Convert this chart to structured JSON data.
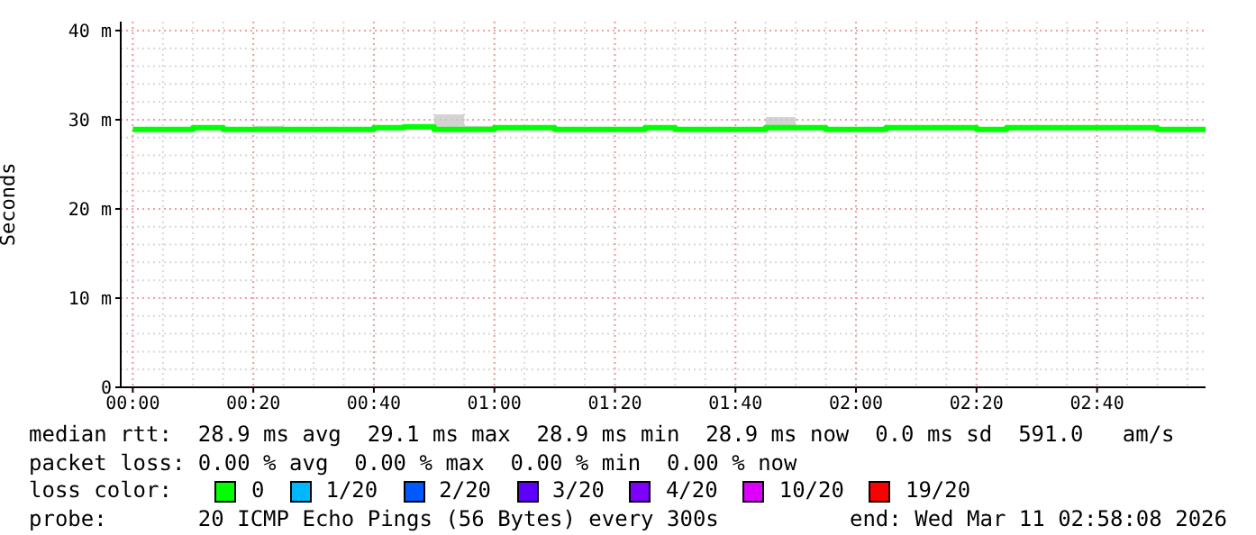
{
  "chart_data": {
    "type": "step",
    "ylabel": "Seconds",
    "legend_title": "loss color:",
    "legend": "bottom",
    "grid": true,
    "xlim": [
      "2026-03-10T23:58",
      "2026-03-11T02:58"
    ],
    "xticks": [
      {
        "value": "2026-03-11T00:00",
        "label": "00:00"
      },
      {
        "value": "2026-03-11T00:20",
        "label": "00:20"
      },
      {
        "value": "2026-03-11T00:40",
        "label": "00:40"
      },
      {
        "value": "2026-03-11T01:00",
        "label": "01:00"
      },
      {
        "value": "2026-03-11T01:20",
        "label": "01:20"
      },
      {
        "value": "2026-03-11T01:40",
        "label": "01:40"
      },
      {
        "value": "2026-03-11T02:00",
        "label": "02:00"
      },
      {
        "value": "2026-03-11T02:20",
        "label": "02:20"
      },
      {
        "value": "2026-03-11T02:40",
        "label": "02:40"
      }
    ],
    "ylim": [
      0,
      41
    ],
    "yticks": [
      0,
      {
        "value": 10,
        "label": "10 m"
      },
      {
        "value": 20,
        "label": "20 m"
      },
      {
        "value": 30,
        "label": "30 m"
      },
      {
        "value": 40,
        "label": "40 m"
      }
    ],
    "x": [
      "2026-03-11T00:00",
      "2026-03-11T00:05",
      "2026-03-11T00:10",
      "2026-03-11T00:15",
      "2026-03-11T00:20",
      "2026-03-11T00:25",
      "2026-03-11T00:30",
      "2026-03-11T00:35",
      "2026-03-11T00:40",
      "2026-03-11T00:45",
      "2026-03-11T00:50",
      "2026-03-11T00:55",
      "2026-03-11T01:00",
      "2026-03-11T01:05",
      "2026-03-11T01:10",
      "2026-03-11T01:15",
      "2026-03-11T01:20",
      "2026-03-11T01:25",
      "2026-03-11T01:30",
      "2026-03-11T01:35",
      "2026-03-11T01:40",
      "2026-03-11T01:45",
      "2026-03-11T01:50",
      "2026-03-11T01:55",
      "2026-03-11T02:00",
      "2026-03-11T02:05",
      "2026-03-11T02:10",
      "2026-03-11T02:15",
      "2026-03-11T02:20",
      "2026-03-11T02:25",
      "2026-03-11T02:30",
      "2026-03-11T02:35",
      "2026-03-11T02:40",
      "2026-03-11T02:45",
      "2026-03-11T02:50",
      "2026-03-11T02:55"
    ],
    "series": [
      {
        "name": "0",
        "color": "#00ff00",
        "values": [
          28.9,
          28.9,
          29.1,
          28.9,
          28.9,
          28.9,
          28.9,
          28.9,
          29.1,
          29.2,
          28.9,
          28.9,
          29.1,
          29.1,
          28.9,
          28.9,
          28.9,
          29.1,
          28.9,
          28.9,
          28.9,
          29.1,
          29.1,
          28.9,
          28.9,
          29.1,
          29.1,
          29.1,
          28.9,
          29.1,
          29.1,
          29.1,
          29.1,
          29.1,
          28.9,
          28.9
        ],
        "lower": [
          28.9,
          28.9,
          29.1,
          28.9,
          28.9,
          28.9,
          28.9,
          28.9,
          29.1,
          29.2,
          28.9,
          28.9,
          29.1,
          29.1,
          28.9,
          28.9,
          28.9,
          29.1,
          28.9,
          28.9,
          28.9,
          29.1,
          29.1,
          28.9,
          28.9,
          29.1,
          29.1,
          29.1,
          28.9,
          29.1,
          29.1,
          29.1,
          29.1,
          29.1,
          28.9,
          28.9
        ],
        "upper": [
          28.9,
          28.9,
          29.1,
          28.9,
          29.3,
          28.9,
          28.9,
          28.9,
          29.1,
          29.2,
          30.6,
          29.3,
          29.1,
          29.1,
          28.9,
          28.9,
          28.9,
          29.1,
          28.9,
          28.9,
          28.9,
          30.3,
          29.1,
          28.9,
          28.9,
          29.1,
          29.1,
          29.1,
          28.9,
          29.1,
          29.1,
          29.1,
          29.1,
          29.1,
          28.9,
          28.9
        ]
      },
      {
        "name": "1/20",
        "color": "#00b8ff",
        "values": [
          null,
          null,
          null,
          null,
          null,
          null,
          null,
          null,
          null,
          null,
          null,
          null,
          null,
          null,
          null,
          null,
          null,
          null,
          null,
          null,
          null,
          null,
          null,
          null,
          null,
          null,
          null,
          null,
          null,
          null,
          null,
          null,
          null,
          null,
          null,
          null
        ]
      },
      {
        "name": "2/20",
        "color": "#0059ff",
        "values": [
          null,
          null,
          null,
          null,
          null,
          null,
          null,
          null,
          null,
          null,
          null,
          null,
          null,
          null,
          null,
          null,
          null,
          null,
          null,
          null,
          null,
          null,
          null,
          null,
          null,
          null,
          null,
          null,
          null,
          null,
          null,
          null,
          null,
          null,
          null,
          null
        ]
      },
      {
        "name": "3/20",
        "color": "#5e00ff",
        "values": [
          null,
          null,
          null,
          null,
          null,
          null,
          null,
          null,
          null,
          null,
          null,
          null,
          null,
          null,
          null,
          null,
          null,
          null,
          null,
          null,
          null,
          null,
          null,
          null,
          null,
          null,
          null,
          null,
          null,
          null,
          null,
          null,
          null,
          null,
          null,
          null
        ]
      },
      {
        "name": "4/20",
        "color": "#7e00ff",
        "values": [
          null,
          null,
          null,
          null,
          null,
          null,
          null,
          null,
          null,
          null,
          null,
          null,
          null,
          null,
          null,
          null,
          null,
          null,
          null,
          null,
          null,
          null,
          null,
          null,
          null,
          null,
          null,
          null,
          null,
          null,
          null,
          null,
          null,
          null,
          null,
          null
        ]
      },
      {
        "name": "10/20",
        "color": "#dd00ff",
        "values": [
          null,
          null,
          null,
          null,
          null,
          null,
          null,
          null,
          null,
          null,
          null,
          null,
          null,
          null,
          null,
          null,
          null,
          null,
          null,
          null,
          null,
          null,
          null,
          null,
          null,
          null,
          null,
          null,
          null,
          null,
          null,
          null,
          null,
          null,
          null,
          null
        ]
      },
      {
        "name": "19/20",
        "color": "#ff0000",
        "values": [
          null,
          null,
          null,
          null,
          null,
          null,
          null,
          null,
          null,
          null,
          null,
          null,
          null,
          null,
          null,
          null,
          null,
          null,
          null,
          null,
          null,
          null,
          null,
          null,
          null,
          null,
          null,
          null,
          null,
          null,
          null,
          null,
          null,
          null,
          null,
          null
        ]
      }
    ],
    "annotations": [
      "median rtt:  28.9 ms avg  29.1 ms max  28.9 ms min  28.9 ms now  0.0 ms sd  591.0   am/s",
      "packet loss: 0.00 % avg  0.00 % max  0.00 % min  0.00 % now",
      "probe:       20 ICMP Echo Pings (56 Bytes) every 300s",
      "end: Wed Mar 11 02:58:08 2026"
    ]
  }
}
